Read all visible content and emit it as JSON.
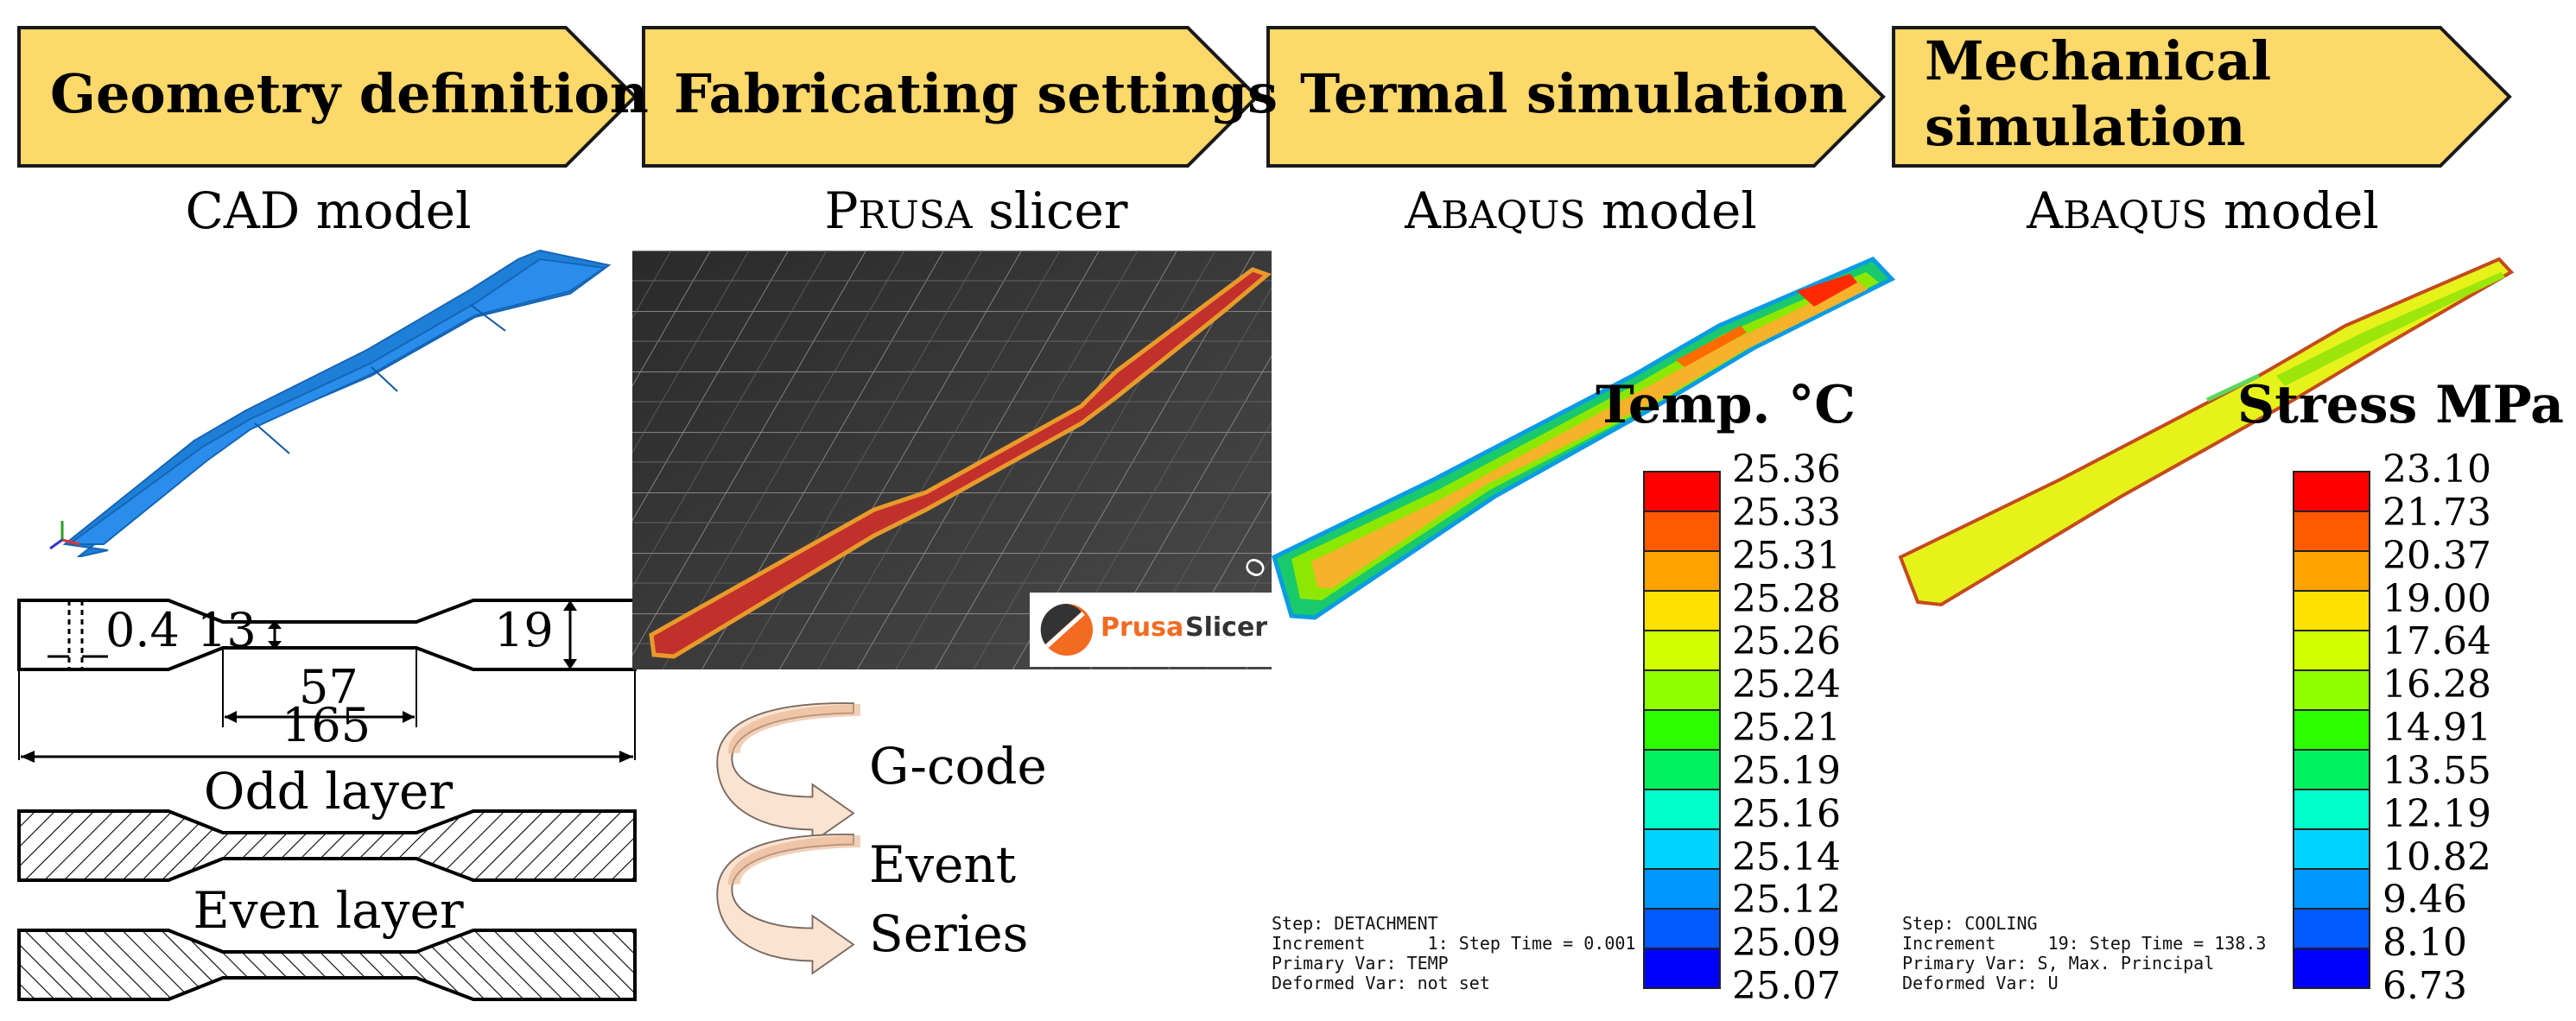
{
  "workflow": {
    "stages": [
      {
        "label": "Geometry definition"
      },
      {
        "label": "Fabricating settings"
      },
      {
        "label": "Termal simulation"
      },
      {
        "label_line1": "Mechanical",
        "label_line2": "simulation"
      }
    ],
    "colors": {
      "arrow_fill": "#FDD86A",
      "arrow_stroke": "#1a1a1a"
    }
  },
  "tools": {
    "cad": "CAD model",
    "prusa": {
      "first": "P",
      "rest": "RUSA",
      "suffix": " slicer"
    },
    "abaqus_thermal": {
      "first": "A",
      "rest": "BAQUS",
      "suffix": " model"
    },
    "abaqus_mech": {
      "first": "A",
      "rest": "BAQUS",
      "suffix": " model"
    }
  },
  "geometry": {
    "dims": {
      "thickness": "0.4",
      "neck_width": "13",
      "grip_width": "19",
      "gauge_length": "57",
      "total_length": "165"
    },
    "odd_layer": "Odd layer",
    "even_layer": "Even layer"
  },
  "slicer": {
    "logo_word1": "Prusa",
    "logo_word2": "Slicer",
    "bed_edge_text": "O",
    "colors": {
      "part": "#C1302B",
      "outline": "#E89A2B",
      "bed": "#3a3a3a",
      "logo_orange": "#F26B21"
    }
  },
  "cycle": {
    "gcode": "G-code",
    "event_line1": "Event",
    "event_line2": "Series",
    "arrow_color": "#FBE3D2"
  },
  "thermal": {
    "legend_title": "Temp. °C",
    "values": [
      "25.36",
      "25.33",
      "25.31",
      "25.28",
      "25.26",
      "25.24",
      "25.21",
      "25.19",
      "25.16",
      "25.14",
      "25.12",
      "25.09",
      "25.07"
    ],
    "step_info": [
      "Step: DETACHMENT",
      "Increment      1: Step Time = 0.001",
      "Primary Var: TEMP",
      "Deformed Var: not set"
    ]
  },
  "mechanical": {
    "legend_title": "Stress MPa",
    "values": [
      "23.10",
      "21.73",
      "20.37",
      "19.00",
      "17.64",
      "16.28",
      "14.91",
      "13.55",
      "12.19",
      "10.82",
      "9.46",
      "8.10",
      "6.73"
    ],
    "step_info": [
      "Step: COOLING",
      "Increment     19: Step Time = 138.3",
      "Primary Var: S, Max. Principal",
      "Deformed Var: U"
    ]
  },
  "colormap": [
    "#FF0000",
    "#FF5A00",
    "#FFA200",
    "#FFE100",
    "#D2FF00",
    "#90FF00",
    "#2BFF00",
    "#00F060",
    "#00FFC8",
    "#00D2FF",
    "#0096FF",
    "#005AFF",
    "#0000FF"
  ]
}
